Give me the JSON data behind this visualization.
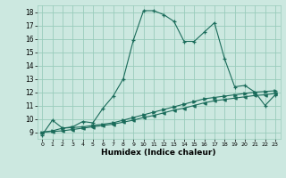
{
  "title": "",
  "xlabel": "Humidex (Indice chaleur)",
  "bg_color": "#cce8e0",
  "grid_color": "#99ccbb",
  "line_color": "#1a6b5a",
  "xlim": [
    -0.5,
    23.5
  ],
  "ylim": [
    8.5,
    18.5
  ],
  "xticks": [
    0,
    1,
    2,
    3,
    4,
    5,
    6,
    7,
    8,
    9,
    10,
    11,
    12,
    13,
    14,
    15,
    16,
    17,
    18,
    19,
    20,
    21,
    22,
    23
  ],
  "yticks": [
    9,
    10,
    11,
    12,
    13,
    14,
    15,
    16,
    17,
    18
  ],
  "line1_x": [
    0,
    1,
    2,
    3,
    4,
    5,
    6,
    7,
    8,
    9,
    10,
    11,
    12,
    13,
    14,
    15,
    16,
    17,
    18,
    19,
    20,
    21,
    22,
    23
  ],
  "line1_y": [
    8.8,
    9.9,
    9.3,
    9.4,
    9.8,
    9.7,
    10.8,
    11.7,
    13.0,
    15.9,
    18.1,
    18.1,
    17.8,
    17.3,
    15.8,
    15.8,
    16.5,
    17.2,
    14.5,
    12.4,
    12.5,
    12.0,
    11.0,
    11.8
  ],
  "line2_x": [
    0,
    1,
    2,
    3,
    4,
    5,
    6,
    7,
    8,
    9,
    10,
    11,
    12,
    13,
    14,
    15,
    16,
    17,
    18,
    19,
    20,
    21,
    22,
    23
  ],
  "line2_y": [
    9.0,
    9.1,
    9.3,
    9.35,
    9.4,
    9.5,
    9.6,
    9.7,
    9.9,
    10.1,
    10.3,
    10.5,
    10.7,
    10.9,
    11.1,
    11.3,
    11.5,
    11.6,
    11.7,
    11.8,
    11.9,
    12.0,
    12.05,
    12.1
  ],
  "line3_x": [
    0,
    1,
    2,
    3,
    4,
    5,
    6,
    7,
    8,
    9,
    10,
    11,
    12,
    13,
    14,
    15,
    16,
    17,
    18,
    19,
    20,
    21,
    22,
    23
  ],
  "line3_y": [
    9.0,
    9.05,
    9.1,
    9.2,
    9.3,
    9.4,
    9.5,
    9.6,
    9.75,
    9.9,
    10.1,
    10.25,
    10.45,
    10.65,
    10.8,
    11.0,
    11.2,
    11.35,
    11.45,
    11.55,
    11.65,
    11.75,
    11.8,
    11.9
  ]
}
